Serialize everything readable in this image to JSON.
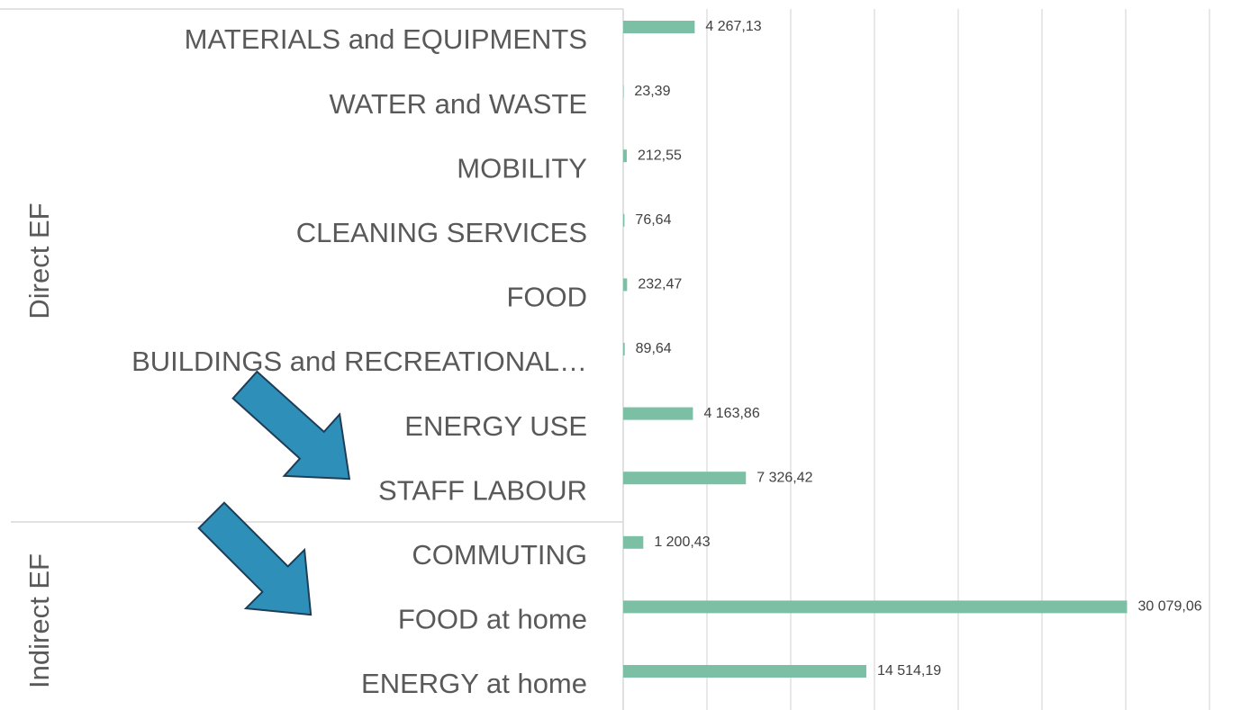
{
  "chart_data": {
    "type": "barh",
    "categories": [
      "MATERIALS and EQUIPMENTS",
      "WATER and WASTE",
      "MOBILITY",
      "CLEANING SERVICES",
      "FOOD",
      "BUILDINGS and RECREATIONAL…",
      "ENERGY USE",
      "STAFF LABOUR",
      "COMMUTING",
      "FOOD at home",
      "ENERGY at home"
    ],
    "values": [
      4267.13,
      23.39,
      212.55,
      76.64,
      232.47,
      89.64,
      4163.86,
      7326.42,
      1200.43,
      30079.06,
      14514.19
    ],
    "value_labels": [
      "4 267,13",
      "23,39",
      "212,55",
      "76,64",
      "232,47",
      "89,64",
      "4 163,86",
      "7 326,42",
      "1 200,43",
      "30 079,06",
      "14 514,19"
    ],
    "group_labels": [
      "Direct EF",
      "Indirect EF"
    ],
    "color": "#7bbfa4",
    "xlim": [
      0,
      35000
    ],
    "xticks": [
      0,
      5000,
      10000,
      15000,
      20000,
      25000,
      30000,
      35000
    ],
    "grid": true
  }
}
